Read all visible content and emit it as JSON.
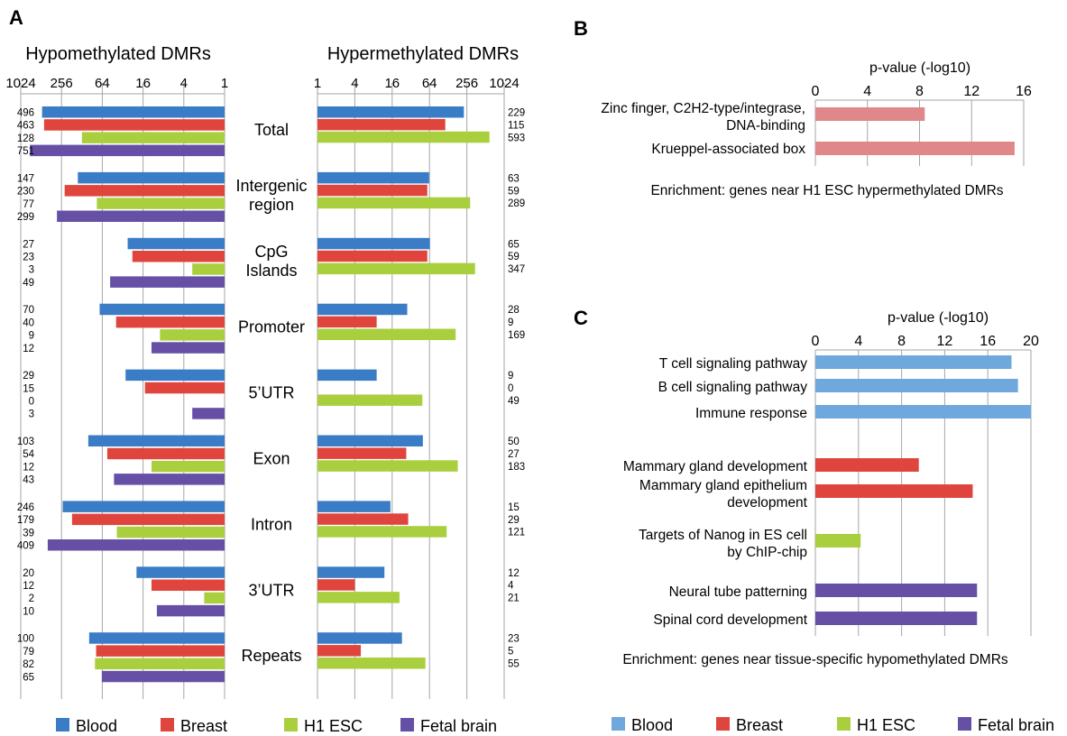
{
  "colors": {
    "blood": "#3a7cc6",
    "breast": "#e0453d",
    "h1esc": "#a9cf3f",
    "fetal_brain": "#6650a6",
    "blood_c": "#6fa8dc",
    "zinc": "#e0878a",
    "gridline": "#a6a6a6"
  },
  "panels": {
    "a_label": "A",
    "b_label": "B",
    "c_label": "C"
  },
  "chart_data": [
    {
      "id": "A",
      "type": "bar",
      "orientation": "horizontal",
      "scale": "log2",
      "left_title": "Hypomethylated DMRs",
      "right_title": "Hypermethylated DMRs",
      "left_ticks": [
        "1024",
        "256",
        "64",
        "16",
        "4",
        "1"
      ],
      "right_ticks": [
        "1",
        "4",
        "16",
        "64",
        "256",
        "1024"
      ],
      "left_series": [
        "Blood",
        "Breast",
        "H1 ESC",
        "Fetal brain"
      ],
      "right_series": [
        "Blood",
        "Breast",
        "H1 ESC"
      ],
      "categories": [
        {
          "label": [
            "Total"
          ],
          "hypo": [
            496,
            463,
            128,
            751
          ],
          "hypo_labels": [
            "496",
            "463",
            "128",
            "751"
          ],
          "hyper": [
            229,
            115,
            593
          ],
          "hyper_labels": [
            "229",
            "115",
            "593"
          ]
        },
        {
          "label": [
            "Intergenic",
            "region"
          ],
          "hypo": [
            147,
            230,
            77,
            299
          ],
          "hypo_labels": [
            "147",
            "230",
            "77",
            "299"
          ],
          "hyper": [
            63,
            59,
            289
          ],
          "hyper_labels": [
            "63",
            "59",
            "289"
          ]
        },
        {
          "label": [
            "CpG",
            "Islands"
          ],
          "hypo": [
            27,
            23,
            3,
            49
          ],
          "hypo_labels": [
            "27",
            "23",
            "3",
            "49"
          ],
          "hyper": [
            65,
            59,
            347
          ],
          "hyper_labels": [
            "65",
            "59",
            "347"
          ]
        },
        {
          "label": [
            "Promoter"
          ],
          "hypo": [
            70,
            40,
            9,
            12
          ],
          "hypo_labels": [
            "70",
            "40",
            "9",
            "12"
          ],
          "hyper": [
            28,
            9,
            169
          ],
          "hyper_labels": [
            "28",
            "9",
            "169"
          ]
        },
        {
          "label": [
            "5’UTR"
          ],
          "hypo": [
            29,
            15,
            0,
            3
          ],
          "hypo_labels": [
            "29",
            "15",
            "0",
            "3"
          ],
          "hyper": [
            9,
            0,
            49
          ],
          "hyper_labels": [
            "9",
            "0",
            "49"
          ]
        },
        {
          "label": [
            "Exon"
          ],
          "hypo": [
            103,
            54,
            12,
            43
          ],
          "hypo_labels": [
            "103",
            "54",
            "12",
            "43"
          ],
          "hyper": [
            50,
            27,
            183
          ],
          "hyper_labels": [
            "50",
            "27",
            "183"
          ]
        },
        {
          "label": [
            "Intron"
          ],
          "hypo": [
            246,
            179,
            39,
            409
          ],
          "hypo_labels": [
            "246",
            "179",
            "39",
            "409"
          ],
          "hyper": [
            15,
            29,
            121
          ],
          "hyper_labels": [
            "15",
            "29",
            "121"
          ]
        },
        {
          "label": [
            "3’UTR"
          ],
          "hypo": [
            20,
            12,
            2,
            10
          ],
          "hypo_labels": [
            "20",
            "12",
            "2",
            "10"
          ],
          "hyper": [
            12,
            4,
            21
          ],
          "hyper_labels": [
            "12",
            "4",
            "21"
          ]
        },
        {
          "label": [
            "Repeats"
          ],
          "hypo": [
            100,
            79,
            82,
            65
          ],
          "hypo_labels": [
            "100",
            "79",
            "82",
            "65"
          ],
          "hyper": [
            23,
            5,
            55
          ],
          "hyper_labels": [
            "23",
            "5",
            "55"
          ]
        }
      ],
      "legend": [
        "Blood",
        "Breast",
        "H1 ESC",
        "Fetal brain"
      ]
    },
    {
      "id": "B",
      "type": "bar",
      "orientation": "horizontal",
      "xlabel": "p-value (-log10)",
      "ticks": [
        "0",
        "4",
        "8",
        "12",
        "16"
      ],
      "xlim": [
        0,
        16
      ],
      "categories": [
        {
          "label": [
            "Zinc finger, C2H2-type/integrase,",
            "DNA-binding"
          ],
          "value": 8.4
        },
        {
          "label": [
            "Krueppel-associated box"
          ],
          "value": 15.3
        }
      ],
      "caption": "Enrichment: genes near H1 ESC hypermethylated DMRs"
    },
    {
      "id": "C",
      "type": "bar",
      "orientation": "horizontal",
      "xlabel": "p-value (-log10)",
      "ticks": [
        "0",
        "4",
        "8",
        "12",
        "16",
        "20"
      ],
      "xlim": [
        0,
        20
      ],
      "categories": [
        {
          "label": [
            "T cell signaling pathway"
          ],
          "value": 18.2,
          "tissue": "Blood"
        },
        {
          "label": [
            "B cell signaling pathway"
          ],
          "value": 18.8,
          "tissue": "Blood"
        },
        {
          "label": [
            "Immune response"
          ],
          "value": 20.0,
          "tissue": "Blood"
        },
        {
          "label": [
            "Mammary gland development"
          ],
          "value": 9.6,
          "tissue": "Breast"
        },
        {
          "label": [
            "Mammary gland epithelium",
            "development"
          ],
          "value": 14.6,
          "tissue": "Breast"
        },
        {
          "label": [
            "Targets of Nanog in ES cell",
            "by ChIP-chip"
          ],
          "value": 4.2,
          "tissue": "H1 ESC"
        },
        {
          "label": [
            "Neural tube patterning"
          ],
          "value": 15.0,
          "tissue": "Fetal brain"
        },
        {
          "label": [
            "Spinal cord development"
          ],
          "value": 15.0,
          "tissue": "Fetal brain"
        }
      ],
      "caption": "Enrichment: genes near tissue-specific hypomethylated DMRs",
      "legend": [
        "Blood",
        "Breast",
        "H1 ESC",
        "Fetal brain"
      ]
    }
  ]
}
